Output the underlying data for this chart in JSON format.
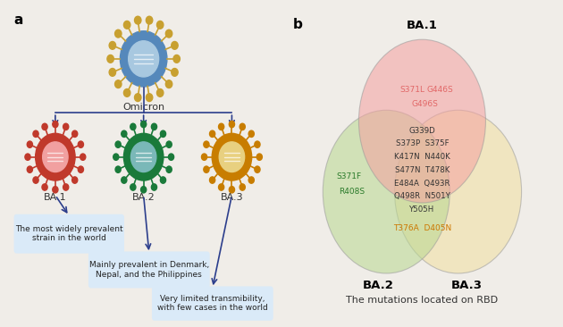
{
  "bg_color": "#f0ede8",
  "panel_a": {
    "omicron_label": "Omicron",
    "children": [
      "BA.1",
      "BA.2",
      "BA.3"
    ],
    "child_colors_outer": [
      "#c0392b",
      "#1a7a3a",
      "#c87d00"
    ],
    "child_colors_inner": [
      "#f1a0a0",
      "#7ab8b8",
      "#e8d080"
    ],
    "omicron_color_outer": "#5588bb",
    "omicron_color_inner": "#a8c8e0",
    "spike_color_omicron": "#c8a030",
    "spike_colors": [
      "#c0392b",
      "#1a7a3a",
      "#c87d00"
    ],
    "arrow_color": "#2c3e8c",
    "box_color": "#daeaf8",
    "descriptions": [
      "The most widely prevalent\nstrain in the world",
      "Mainly prevalent in Denmark,\nNepal, and the Philippines",
      "Very limited transmibility,\nwith few cases in the world"
    ]
  },
  "panel_b": {
    "circle_colors": [
      "#f4a0a0",
      "#b8d890",
      "#f0e0a0"
    ],
    "circle_alpha": 0.55,
    "ba1_only_line1": "S371L    G446S",
    "ba1_only_line2": "G496S",
    "ba1_only_color": "#cc2222",
    "ba2_only": [
      "S371F",
      "R408S"
    ],
    "ba2_only_color": "#2a7a2a",
    "ba23_shared": "T376A  D405N",
    "ba23_shared_color": "#cc7700",
    "center_mutations": [
      "G339D",
      "S373P  S375F",
      "K417N  N440K",
      "S477N  T478K",
      "E484A  Q493R",
      "Q498R  N501Y",
      "Y505H"
    ],
    "center_color": "#333333",
    "subtitle": "The mutations located on RBD"
  }
}
